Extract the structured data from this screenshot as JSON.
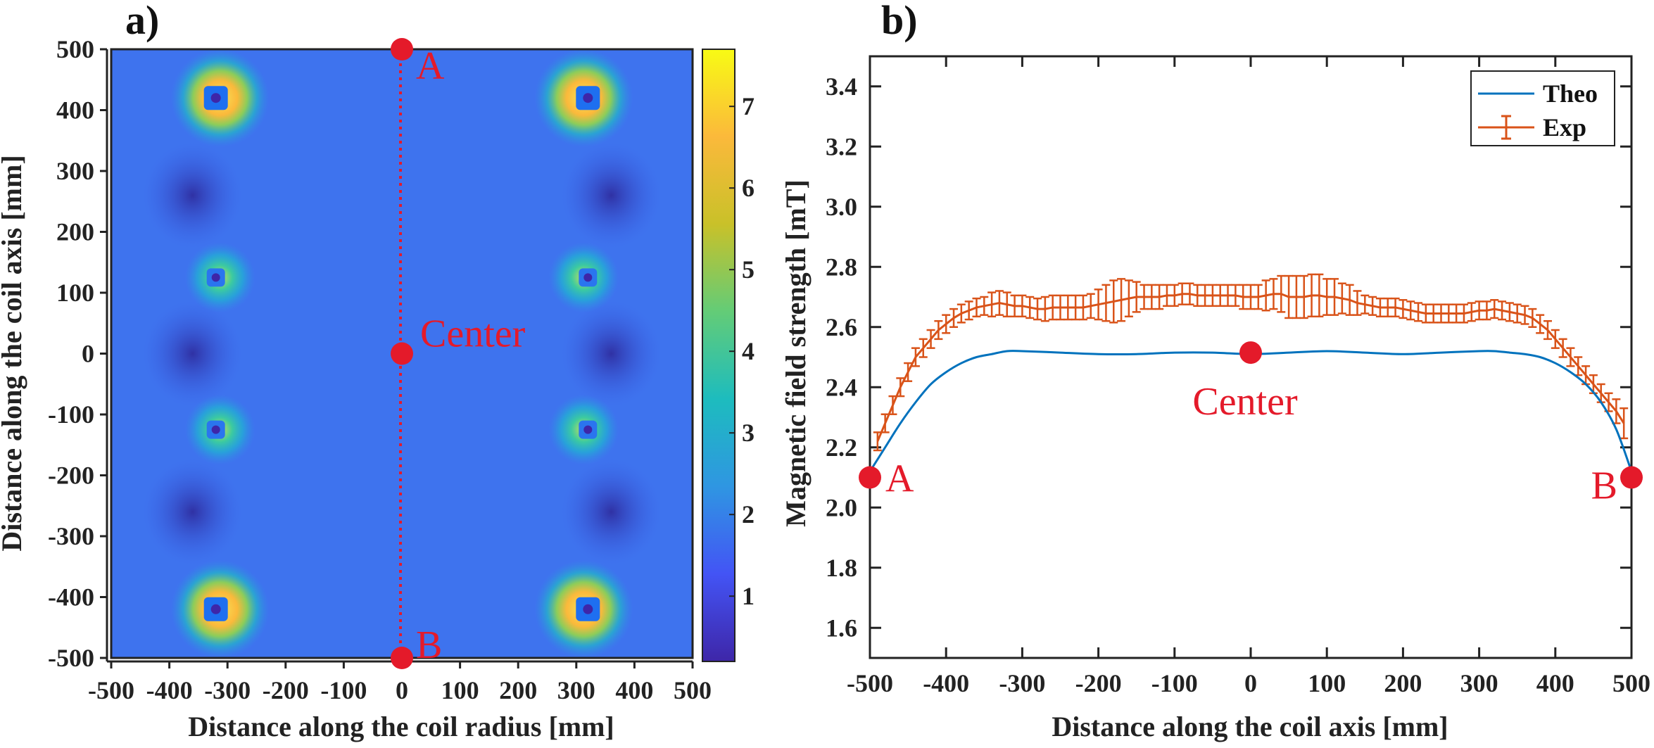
{
  "chart_data": [
    {
      "type": "heatmap",
      "panel_label": "a)",
      "xlabel": "Distance along the coil radius [mm]",
      "ylabel": "Distance along the coil axis [mm]",
      "xlim": [
        -500,
        500
      ],
      "ylim": [
        -500,
        500
      ],
      "x_ticks": [
        -500,
        -400,
        -300,
        -200,
        -100,
        0,
        100,
        200,
        300,
        400,
        500
      ],
      "y_ticks": [
        500,
        400,
        300,
        200,
        100,
        0,
        -100,
        -200,
        -300,
        -400,
        -500
      ],
      "colorbar_ticks": [
        1,
        2,
        3,
        4,
        5,
        6,
        7
      ],
      "colorbar_range": [
        0.2,
        7.7
      ],
      "colormap": [
        "#3e26a8",
        "#4354f5",
        "#2f96e2",
        "#1dbcbe",
        "#63cc77",
        "#c9c129",
        "#fbb93b",
        "#f8fb14"
      ],
      "coil_hotspots": [
        {
          "x": -320,
          "y": 420,
          "peak": 7.3
        },
        {
          "x": 320,
          "y": 420,
          "peak": 7.3
        },
        {
          "x": -320,
          "y": 125,
          "peak": 4.2
        },
        {
          "x": 320,
          "y": 125,
          "peak": 4.2
        },
        {
          "x": -320,
          "y": -125,
          "peak": 4.2
        },
        {
          "x": 320,
          "y": -125,
          "peak": 4.2
        },
        {
          "x": -320,
          "y": -420,
          "peak": 7.3
        },
        {
          "x": 320,
          "y": -420,
          "peak": 7.3
        }
      ],
      "cold_spots": [
        {
          "x": -360,
          "y": 260
        },
        {
          "x": 360,
          "y": 260
        },
        {
          "x": -360,
          "y": 0
        },
        {
          "x": 360,
          "y": 0
        },
        {
          "x": -360,
          "y": -260
        },
        {
          "x": 360,
          "y": -260
        }
      ],
      "markers": [
        {
          "label": "A",
          "x": 0,
          "y": 500
        },
        {
          "label": "Center",
          "x": 0,
          "y": 0
        },
        {
          "label": "B",
          "x": 0,
          "y": -500
        }
      ]
    },
    {
      "type": "line",
      "panel_label": "b)",
      "xlabel": "Distance along the coil axis [mm]",
      "ylabel": "Magnetic field strength [mT]",
      "xlim": [
        -500,
        500
      ],
      "ylim": [
        1.5,
        3.5
      ],
      "x_ticks": [
        -500,
        -400,
        -300,
        -200,
        -100,
        0,
        100,
        200,
        300,
        400,
        500
      ],
      "y_ticks": [
        1.6,
        1.8,
        2.0,
        2.2,
        2.4,
        2.6,
        2.8,
        3.0,
        3.2,
        3.4
      ],
      "legend_position": "top-right",
      "series": [
        {
          "name": "Theo",
          "color": "#0072bd",
          "x": [
            -500,
            -480,
            -460,
            -440,
            -420,
            -400,
            -380,
            -360,
            -340,
            -320,
            -300,
            -250,
            -200,
            -150,
            -100,
            -50,
            0,
            50,
            100,
            150,
            200,
            250,
            300,
            320,
            340,
            360,
            380,
            400,
            420,
            440,
            460,
            480,
            500
          ],
          "y": [
            2.12,
            2.2,
            2.28,
            2.35,
            2.41,
            2.45,
            2.48,
            2.5,
            2.51,
            2.52,
            2.52,
            2.515,
            2.51,
            2.51,
            2.515,
            2.515,
            2.51,
            2.515,
            2.52,
            2.515,
            2.51,
            2.515,
            2.52,
            2.52,
            2.515,
            2.51,
            2.5,
            2.48,
            2.45,
            2.41,
            2.35,
            2.26,
            2.12
          ]
        },
        {
          "name": "Exp",
          "color": "#d95319",
          "x": [
            -490,
            -480,
            -470,
            -460,
            -450,
            -440,
            -430,
            -420,
            -410,
            -400,
            -390,
            -380,
            -370,
            -360,
            -350,
            -340,
            -330,
            -320,
            -310,
            -300,
            -290,
            -280,
            -270,
            -260,
            -250,
            -240,
            -230,
            -220,
            -210,
            -200,
            -190,
            -180,
            -170,
            -160,
            -150,
            -140,
            -130,
            -120,
            -110,
            -100,
            -90,
            -80,
            -70,
            -60,
            -50,
            -40,
            -30,
            -20,
            -10,
            0,
            10,
            20,
            30,
            40,
            50,
            60,
            70,
            80,
            90,
            100,
            110,
            120,
            130,
            140,
            150,
            160,
            170,
            180,
            190,
            200,
            210,
            220,
            230,
            240,
            250,
            260,
            270,
            280,
            290,
            300,
            310,
            320,
            330,
            340,
            350,
            360,
            370,
            380,
            390,
            400,
            410,
            420,
            430,
            440,
            450,
            460,
            470,
            480,
            490
          ],
          "y": [
            2.22,
            2.28,
            2.34,
            2.4,
            2.45,
            2.5,
            2.53,
            2.56,
            2.59,
            2.61,
            2.63,
            2.645,
            2.655,
            2.665,
            2.67,
            2.675,
            2.68,
            2.675,
            2.67,
            2.67,
            2.665,
            2.66,
            2.66,
            2.665,
            2.665,
            2.665,
            2.665,
            2.665,
            2.67,
            2.675,
            2.68,
            2.685,
            2.69,
            2.695,
            2.7,
            2.7,
            2.7,
            2.7,
            2.705,
            2.705,
            2.71,
            2.71,
            2.705,
            2.705,
            2.705,
            2.705,
            2.705,
            2.705,
            2.7,
            2.7,
            2.7,
            2.705,
            2.71,
            2.71,
            2.7,
            2.7,
            2.7,
            2.705,
            2.705,
            2.7,
            2.7,
            2.695,
            2.69,
            2.68,
            2.675,
            2.67,
            2.665,
            2.665,
            2.665,
            2.66,
            2.655,
            2.65,
            2.645,
            2.645,
            2.645,
            2.645,
            2.645,
            2.645,
            2.65,
            2.655,
            2.655,
            2.66,
            2.655,
            2.65,
            2.645,
            2.64,
            2.63,
            2.61,
            2.59,
            2.56,
            2.53,
            2.5,
            2.47,
            2.44,
            2.41,
            2.38,
            2.35,
            2.32,
            2.28
          ],
          "err": [
            0.03,
            0.03,
            0.03,
            0.03,
            0.03,
            0.03,
            0.03,
            0.03,
            0.03,
            0.03,
            0.03,
            0.03,
            0.03,
            0.03,
            0.03,
            0.04,
            0.04,
            0.04,
            0.035,
            0.035,
            0.035,
            0.035,
            0.04,
            0.04,
            0.04,
            0.04,
            0.04,
            0.04,
            0.04,
            0.05,
            0.06,
            0.07,
            0.07,
            0.06,
            0.05,
            0.04,
            0.04,
            0.04,
            0.035,
            0.035,
            0.035,
            0.035,
            0.035,
            0.035,
            0.035,
            0.035,
            0.035,
            0.035,
            0.04,
            0.04,
            0.04,
            0.05,
            0.05,
            0.06,
            0.07,
            0.07,
            0.07,
            0.07,
            0.07,
            0.06,
            0.06,
            0.05,
            0.05,
            0.04,
            0.03,
            0.03,
            0.03,
            0.03,
            0.03,
            0.03,
            0.03,
            0.03,
            0.03,
            0.03,
            0.03,
            0.03,
            0.03,
            0.03,
            0.03,
            0.03,
            0.03,
            0.03,
            0.03,
            0.03,
            0.03,
            0.03,
            0.03,
            0.03,
            0.03,
            0.03,
            0.03,
            0.03,
            0.03,
            0.03,
            0.03,
            0.03,
            0.03,
            0.04,
            0.05
          ]
        }
      ],
      "markers": [
        {
          "label": "A",
          "x": -500,
          "y": 2.1
        },
        {
          "label": "Center",
          "x": 0,
          "y": 2.515
        },
        {
          "label": "B",
          "x": 500,
          "y": 2.1
        }
      ]
    }
  ]
}
